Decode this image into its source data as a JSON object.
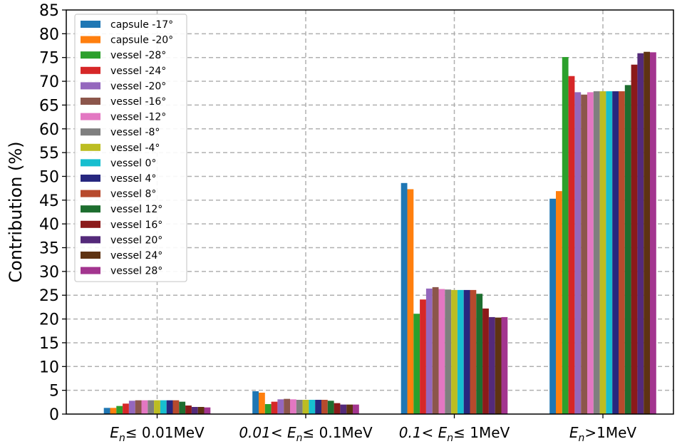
{
  "chart_data": {
    "type": "bar",
    "title": "",
    "xlabel": "",
    "ylabel": "Contribution (%)",
    "ylim": [
      0,
      85
    ],
    "yticks": [
      0,
      5,
      10,
      15,
      20,
      25,
      30,
      35,
      40,
      45,
      50,
      55,
      60,
      65,
      70,
      75,
      80,
      85
    ],
    "grid": true,
    "legend_position": "top-left",
    "categories": [
      {
        "pre": "E",
        "sub": "n",
        "post": "≤ 0.01MeV"
      },
      {
        "pre": "0.01< E",
        "sub": "n",
        "post": "≤ 0.1MeV"
      },
      {
        "pre": "0.1< E",
        "sub": "n",
        "post": "≤ 1MeV"
      },
      {
        "pre": "E",
        "sub": "n",
        "post": ">1MeV"
      }
    ],
    "series": [
      {
        "name": "capsule -17°",
        "color": "#1f77b4",
        "values": [
          1.3,
          4.8,
          48.6,
          45.3
        ]
      },
      {
        "name": "capsule -20°",
        "color": "#ff7f0e",
        "values": [
          1.3,
          4.5,
          47.3,
          46.9
        ]
      },
      {
        "name": "vessel -28°",
        "color": "#2ca02c",
        "values": [
          1.7,
          2.1,
          21.1,
          75.1
        ]
      },
      {
        "name": "vessel -24°",
        "color": "#d62728",
        "values": [
          2.2,
          2.6,
          24.1,
          71.1
        ]
      },
      {
        "name": "vessel -20°",
        "color": "#9467bd",
        "values": [
          2.8,
          3.1,
          26.4,
          67.7
        ]
      },
      {
        "name": "vessel -16°",
        "color": "#8c564b",
        "values": [
          2.9,
          3.2,
          26.7,
          67.2
        ]
      },
      {
        "name": "vessel -12°",
        "color": "#e377c2",
        "values": [
          2.9,
          3.1,
          26.3,
          67.7
        ]
      },
      {
        "name": "vessel -8°",
        "color": "#7f7f7f",
        "values": [
          2.9,
          3.0,
          26.2,
          67.9
        ]
      },
      {
        "name": "vessel -4°",
        "color": "#bcbd22",
        "values": [
          2.9,
          3.0,
          26.1,
          67.9
        ]
      },
      {
        "name": "vessel 0°",
        "color": "#17becf",
        "values": [
          2.9,
          3.0,
          26.1,
          67.9
        ]
      },
      {
        "name": "vessel 4°",
        "color": "#27277f",
        "values": [
          2.9,
          3.0,
          26.1,
          67.9
        ]
      },
      {
        "name": "vessel 8°",
        "color": "#b74a2d",
        "values": [
          2.9,
          3.0,
          26.1,
          67.9
        ]
      },
      {
        "name": "vessel 12°",
        "color": "#1d6e2f",
        "values": [
          2.6,
          2.8,
          25.3,
          69.2
        ]
      },
      {
        "name": "vessel 16°",
        "color": "#8b1a1a",
        "values": [
          1.8,
          2.3,
          22.2,
          73.5
        ]
      },
      {
        "name": "vessel 20°",
        "color": "#542a7a",
        "values": [
          1.5,
          2.0,
          20.4,
          75.9
        ]
      },
      {
        "name": "vessel 24°",
        "color": "#5e3312",
        "values": [
          1.5,
          2.0,
          20.3,
          76.2
        ]
      },
      {
        "name": "vessel 28°",
        "color": "#a3358f",
        "values": [
          1.4,
          2.0,
          20.4,
          76.1
        ]
      }
    ]
  }
}
